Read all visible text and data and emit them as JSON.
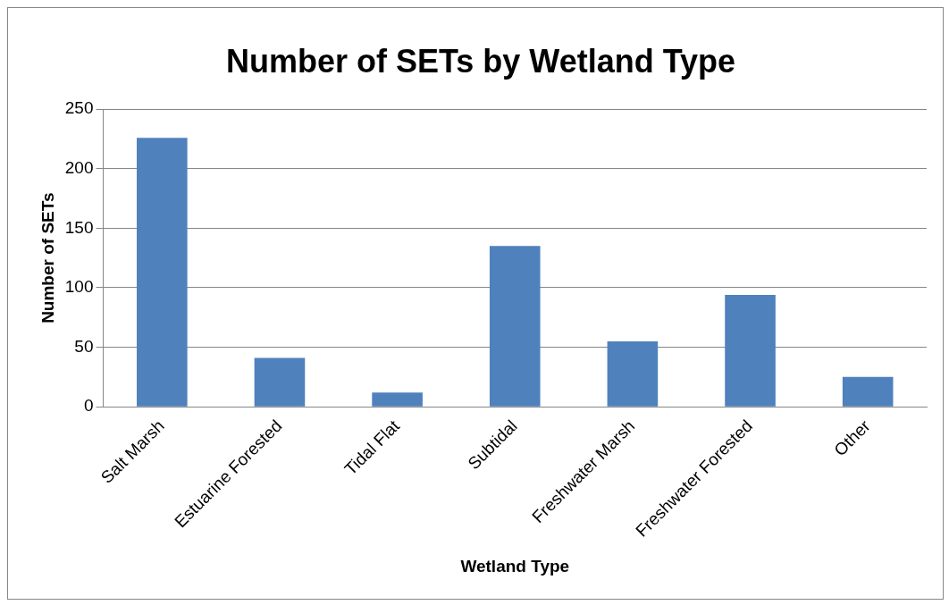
{
  "chart_data": {
    "type": "bar",
    "title": "Number of SETs by Wetland Type",
    "xlabel": "Wetland Type",
    "ylabel": "Number of SETs",
    "categories": [
      "Salt Marsh",
      "Estuarine Forested",
      "Tidal Flat",
      "Subtidal",
      "Freshwater Marsh",
      "Freshwater Forested",
      "Other"
    ],
    "values": [
      226,
      41,
      12,
      135,
      55,
      94,
      25
    ],
    "color": "#4f81bd",
    "ylim": [
      0,
      250
    ],
    "yticks": [
      0,
      50,
      100,
      150,
      200,
      250
    ],
    "grid": "y",
    "legend": false
  }
}
